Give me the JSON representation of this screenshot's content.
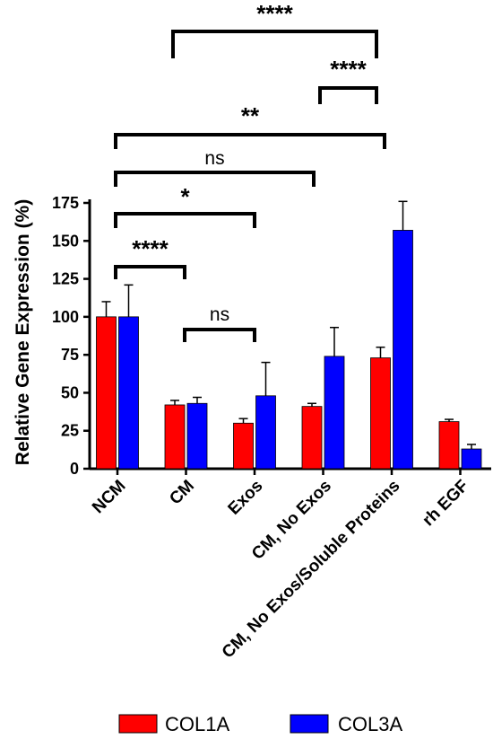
{
  "chart_data": {
    "type": "bar",
    "title": "",
    "xlabel": "",
    "ylabel": "Relative Gene  Expression (%)",
    "ylim": [
      0,
      175
    ],
    "yticks": [
      0,
      25,
      50,
      75,
      100,
      125,
      150,
      175
    ],
    "ytick_labels": [
      "0",
      "25",
      "50",
      "75",
      "100",
      "125",
      "150",
      "175"
    ],
    "categories": [
      "NCM",
      "CM",
      "Exos",
      "CM, No Exos",
      "CM, No Exos/Soluble Proteins",
      "rh EGF"
    ],
    "series": [
      {
        "name": "COL1A",
        "color": "#ff0000",
        "values": [
          100,
          42,
          30,
          41,
          73,
          31
        ],
        "errors": [
          10,
          3,
          3,
          2,
          7,
          1.5
        ]
      },
      {
        "name": "COL3A",
        "color": "#0000ff",
        "values": [
          100,
          43,
          48,
          74,
          157,
          13
        ],
        "errors": [
          21,
          4,
          22,
          19,
          19,
          3
        ]
      }
    ],
    "grid": false,
    "legend_position": "bottom",
    "significance": [
      {
        "from": "CM",
        "to": "CM, No Exos/Soluble Proteins",
        "label": "****"
      },
      {
        "from": "CM, No Exos",
        "to": "CM, No Exos/Soluble Proteins",
        "label": "****"
      },
      {
        "from": "NCM",
        "to": "CM, No Exos/Soluble Proteins",
        "label": "**"
      },
      {
        "from": "NCM",
        "to": "CM, No Exos",
        "label": "ns"
      },
      {
        "from": "NCM",
        "to": "Exos",
        "label": "*"
      },
      {
        "from": "NCM",
        "to": "CM",
        "label": "****"
      },
      {
        "from": "CM",
        "to": "Exos",
        "label": "ns"
      }
    ]
  }
}
